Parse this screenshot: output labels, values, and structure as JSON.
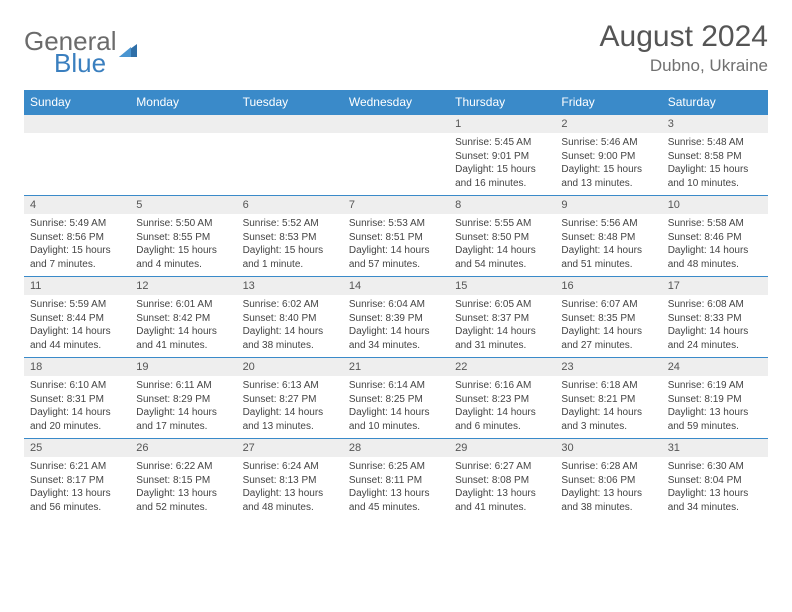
{
  "brand": {
    "part1": "General",
    "part2": "Blue"
  },
  "title": "August 2024",
  "location": "Dubno, Ukraine",
  "colors": {
    "header_bar": "#3a8ac9",
    "row_border": "#3a8ac9",
    "daynum_bg": "#eeeeee",
    "text_dark": "#555555",
    "text_body": "#444444",
    "background": "#ffffff"
  },
  "dow": [
    "Sunday",
    "Monday",
    "Tuesday",
    "Wednesday",
    "Thursday",
    "Friday",
    "Saturday"
  ],
  "weeks": [
    [
      {
        "day": "",
        "sunrise": "",
        "sunset": "",
        "daylight": ""
      },
      {
        "day": "",
        "sunrise": "",
        "sunset": "",
        "daylight": ""
      },
      {
        "day": "",
        "sunrise": "",
        "sunset": "",
        "daylight": ""
      },
      {
        "day": "",
        "sunrise": "",
        "sunset": "",
        "daylight": ""
      },
      {
        "day": "1",
        "sunrise": "5:45 AM",
        "sunset": "9:01 PM",
        "daylight": "15 hours and 16 minutes."
      },
      {
        "day": "2",
        "sunrise": "5:46 AM",
        "sunset": "9:00 PM",
        "daylight": "15 hours and 13 minutes."
      },
      {
        "day": "3",
        "sunrise": "5:48 AM",
        "sunset": "8:58 PM",
        "daylight": "15 hours and 10 minutes."
      }
    ],
    [
      {
        "day": "4",
        "sunrise": "5:49 AM",
        "sunset": "8:56 PM",
        "daylight": "15 hours and 7 minutes."
      },
      {
        "day": "5",
        "sunrise": "5:50 AM",
        "sunset": "8:55 PM",
        "daylight": "15 hours and 4 minutes."
      },
      {
        "day": "6",
        "sunrise": "5:52 AM",
        "sunset": "8:53 PM",
        "daylight": "15 hours and 1 minute."
      },
      {
        "day": "7",
        "sunrise": "5:53 AM",
        "sunset": "8:51 PM",
        "daylight": "14 hours and 57 minutes."
      },
      {
        "day": "8",
        "sunrise": "5:55 AM",
        "sunset": "8:50 PM",
        "daylight": "14 hours and 54 minutes."
      },
      {
        "day": "9",
        "sunrise": "5:56 AM",
        "sunset": "8:48 PM",
        "daylight": "14 hours and 51 minutes."
      },
      {
        "day": "10",
        "sunrise": "5:58 AM",
        "sunset": "8:46 PM",
        "daylight": "14 hours and 48 minutes."
      }
    ],
    [
      {
        "day": "11",
        "sunrise": "5:59 AM",
        "sunset": "8:44 PM",
        "daylight": "14 hours and 44 minutes."
      },
      {
        "day": "12",
        "sunrise": "6:01 AM",
        "sunset": "8:42 PM",
        "daylight": "14 hours and 41 minutes."
      },
      {
        "day": "13",
        "sunrise": "6:02 AM",
        "sunset": "8:40 PM",
        "daylight": "14 hours and 38 minutes."
      },
      {
        "day": "14",
        "sunrise": "6:04 AM",
        "sunset": "8:39 PM",
        "daylight": "14 hours and 34 minutes."
      },
      {
        "day": "15",
        "sunrise": "6:05 AM",
        "sunset": "8:37 PM",
        "daylight": "14 hours and 31 minutes."
      },
      {
        "day": "16",
        "sunrise": "6:07 AM",
        "sunset": "8:35 PM",
        "daylight": "14 hours and 27 minutes."
      },
      {
        "day": "17",
        "sunrise": "6:08 AM",
        "sunset": "8:33 PM",
        "daylight": "14 hours and 24 minutes."
      }
    ],
    [
      {
        "day": "18",
        "sunrise": "6:10 AM",
        "sunset": "8:31 PM",
        "daylight": "14 hours and 20 minutes."
      },
      {
        "day": "19",
        "sunrise": "6:11 AM",
        "sunset": "8:29 PM",
        "daylight": "14 hours and 17 minutes."
      },
      {
        "day": "20",
        "sunrise": "6:13 AM",
        "sunset": "8:27 PM",
        "daylight": "14 hours and 13 minutes."
      },
      {
        "day": "21",
        "sunrise": "6:14 AM",
        "sunset": "8:25 PM",
        "daylight": "14 hours and 10 minutes."
      },
      {
        "day": "22",
        "sunrise": "6:16 AM",
        "sunset": "8:23 PM",
        "daylight": "14 hours and 6 minutes."
      },
      {
        "day": "23",
        "sunrise": "6:18 AM",
        "sunset": "8:21 PM",
        "daylight": "14 hours and 3 minutes."
      },
      {
        "day": "24",
        "sunrise": "6:19 AM",
        "sunset": "8:19 PM",
        "daylight": "13 hours and 59 minutes."
      }
    ],
    [
      {
        "day": "25",
        "sunrise": "6:21 AM",
        "sunset": "8:17 PM",
        "daylight": "13 hours and 56 minutes."
      },
      {
        "day": "26",
        "sunrise": "6:22 AM",
        "sunset": "8:15 PM",
        "daylight": "13 hours and 52 minutes."
      },
      {
        "day": "27",
        "sunrise": "6:24 AM",
        "sunset": "8:13 PM",
        "daylight": "13 hours and 48 minutes."
      },
      {
        "day": "28",
        "sunrise": "6:25 AM",
        "sunset": "8:11 PM",
        "daylight": "13 hours and 45 minutes."
      },
      {
        "day": "29",
        "sunrise": "6:27 AM",
        "sunset": "8:08 PM",
        "daylight": "13 hours and 41 minutes."
      },
      {
        "day": "30",
        "sunrise": "6:28 AM",
        "sunset": "8:06 PM",
        "daylight": "13 hours and 38 minutes."
      },
      {
        "day": "31",
        "sunrise": "6:30 AM",
        "sunset": "8:04 PM",
        "daylight": "13 hours and 34 minutes."
      }
    ]
  ],
  "labels": {
    "sunrise": "Sunrise:",
    "sunset": "Sunset:",
    "daylight": "Daylight:"
  }
}
